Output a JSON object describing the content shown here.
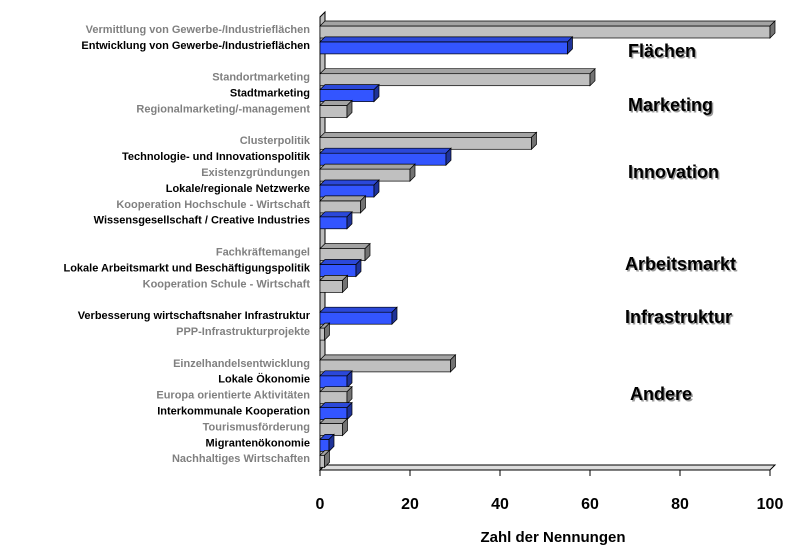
{
  "chart_data": {
    "type": "bar",
    "orientation": "horizontal",
    "categories": [
      "Vermittlung von Gewerbe-/Industrieflächen",
      "Entwicklung von Gewerbe-/Industrieflächen",
      null,
      "Standortmarketing",
      "Stadtmarketing",
      "Regionalmarketing/-management",
      null,
      "Clusterpolitik",
      "Technologie- und Innovationspolitik",
      "Existenzgründungen",
      "Lokale/regionale Netzwerke",
      "Kooperation Hochschule - Wirtschaft",
      "Wissensgesellschaft / Creative Industries",
      null,
      "Fachkräftemangel",
      "Lokale Arbeitsmarkt und Beschäftigungspolitik",
      "Kooperation Schule - Wirtschaft",
      null,
      "Verbesserung wirtschaftsnaher Infrastruktur",
      "PPP-Infrastrukturprojekte",
      null,
      "Einzelhandelsentwicklung",
      "Lokale Ökonomie",
      "Europa orientierte Aktivitäten",
      "Interkommunale Kooperation",
      "Tourismusförderung",
      "Migrantenökonomie",
      "Nachhaltiges Wirtschaften"
    ],
    "values": [
      100,
      55,
      null,
      60,
      12,
      6,
      null,
      47,
      28,
      20,
      12,
      9,
      6,
      null,
      10,
      8,
      5,
      null,
      16,
      1,
      null,
      29,
      6,
      6,
      6,
      5,
      2,
      1
    ],
    "colors": [
      "#c0c0c0",
      "#3355ff",
      null,
      "#c0c0c0",
      "#3355ff",
      "#c0c0c0",
      null,
      "#c0c0c0",
      "#3355ff",
      "#c0c0c0",
      "#3355ff",
      "#c0c0c0",
      "#3355ff",
      null,
      "#c0c0c0",
      "#3355ff",
      "#c0c0c0",
      null,
      "#3355ff",
      "#c0c0c0",
      null,
      "#c0c0c0",
      "#3355ff",
      "#c0c0c0",
      "#3355ff",
      "#c0c0c0",
      "#3355ff",
      "#c0c0c0"
    ],
    "annotations": [
      "Flächen",
      "Marketing",
      "Innovation",
      "Arbeitsmarkt",
      "Infrastruktur",
      "Andere"
    ],
    "xlabel": "Zahl der Nennungen",
    "xlim": [
      0,
      100
    ],
    "xticks": [
      0,
      20,
      40,
      60,
      80,
      100
    ]
  }
}
